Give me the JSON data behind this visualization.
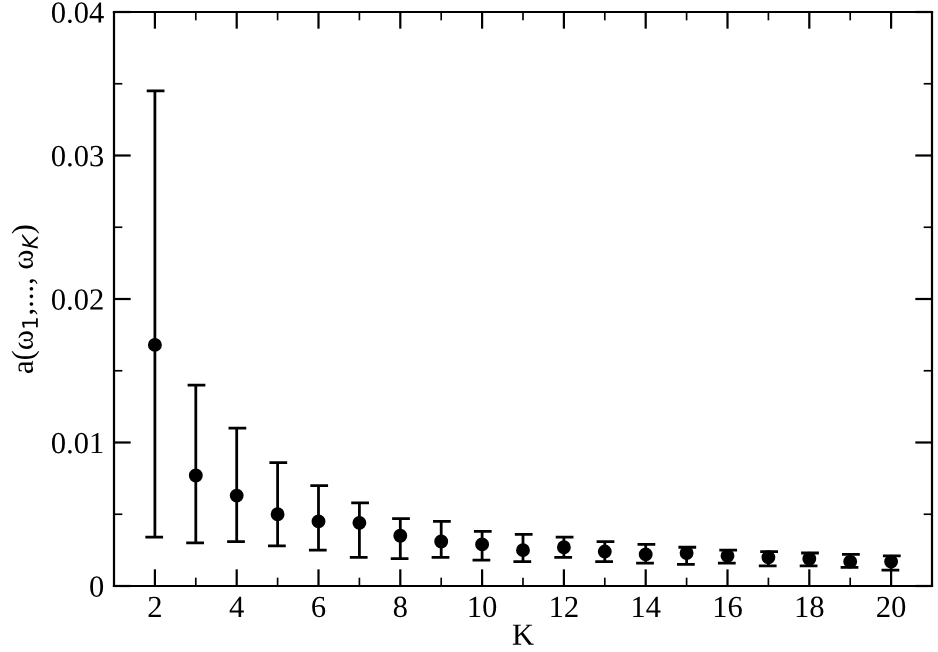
{
  "chart_data": {
    "type": "scatter",
    "xlabel": "K",
    "ylabel": "a(ω$_{1}$,..., ω$_{K}$)",
    "x": [
      2,
      3,
      4,
      5,
      6,
      7,
      8,
      9,
      10,
      11,
      12,
      13,
      14,
      15,
      16,
      17,
      18,
      19,
      20
    ],
    "values": [
      0.0168,
      0.0077,
      0.0063,
      0.005,
      0.0045,
      0.0044,
      0.0035,
      0.0031,
      0.0029,
      0.0025,
      0.0027,
      0.0024,
      0.0022,
      0.0023,
      0.0021,
      0.002,
      0.0019,
      0.0017,
      0.0017
    ],
    "errors": [
      [
        0.0034,
        0.0345
      ],
      [
        0.003,
        0.014
      ],
      [
        0.0031,
        0.011
      ],
      [
        0.0028,
        0.0086
      ],
      [
        0.0025,
        0.007
      ],
      [
        0.002,
        0.0058
      ],
      [
        0.0019,
        0.0047
      ],
      [
        0.002,
        0.0045
      ],
      [
        0.0018,
        0.0038
      ],
      [
        0.0017,
        0.0036
      ],
      [
        0.002,
        0.0034
      ],
      [
        0.0017,
        0.0031
      ],
      [
        0.0016,
        0.0029
      ],
      [
        0.0015,
        0.0027
      ],
      [
        0.0016,
        0.0025
      ],
      [
        0.0014,
        0.0024
      ],
      [
        0.0014,
        0.0023
      ],
      [
        0.0013,
        0.0022
      ],
      [
        0.0011,
        0.0021
      ]
    ],
    "color": "#000000",
    "marker": "circle",
    "grid": false,
    "legend": false,
    "xlim": [
      1,
      21
    ],
    "xticks": [
      2,
      4,
      6,
      8,
      10,
      12,
      14,
      16,
      18,
      20
    ],
    "ylim": [
      0,
      0.04
    ],
    "yticks": [
      0,
      0.01,
      0.02,
      0.03,
      0.04
    ]
  }
}
